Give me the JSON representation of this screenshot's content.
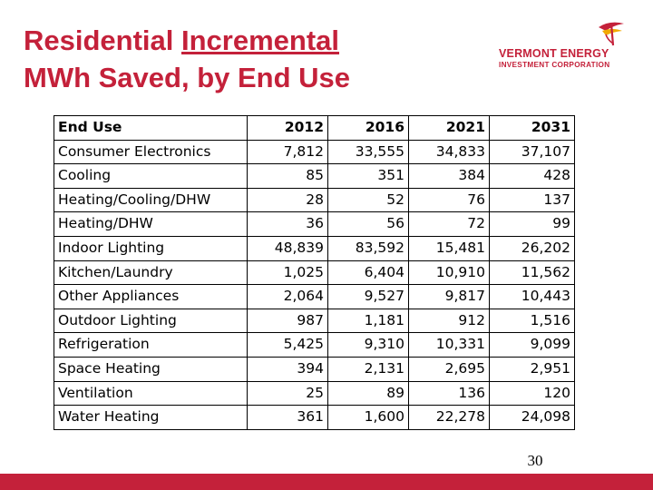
{
  "slide": {
    "title_part1": "Residential ",
    "title_underlined": "Incremental",
    "title_part2": "MWh Saved, by End Use",
    "page_number": "30",
    "accent_color": "#c4213a"
  },
  "logo": {
    "line1": "VERMONT ENERGY",
    "line2": "INVESTMENT CORPORATION",
    "icon": "sun-leaf-icon"
  },
  "table": {
    "headers": [
      "End Use",
      "2012",
      "2016",
      "2021",
      "2031"
    ],
    "rows": [
      [
        "Consumer Electronics",
        "7,812",
        "33,555",
        "34,833",
        "37,107"
      ],
      [
        "Cooling",
        "85",
        "351",
        "384",
        "428"
      ],
      [
        "Heating/Cooling/DHW",
        "28",
        "52",
        "76",
        "137"
      ],
      [
        "Heating/DHW",
        "36",
        "56",
        "72",
        "99"
      ],
      [
        "Indoor Lighting",
        "48,839",
        "83,592",
        "15,481",
        "26,202"
      ],
      [
        "Kitchen/Laundry",
        "1,025",
        "6,404",
        "10,910",
        "11,562"
      ],
      [
        "Other Appliances",
        "2,064",
        "9,527",
        "9,817",
        "10,443"
      ],
      [
        "Outdoor Lighting",
        "987",
        "1,181",
        "912",
        "1,516"
      ],
      [
        "Refrigeration",
        "5,425",
        "9,310",
        "10,331",
        "9,099"
      ],
      [
        "Space Heating",
        "394",
        "2,131",
        "2,695",
        "2,951"
      ],
      [
        "Ventilation",
        "25",
        "89",
        "136",
        "120"
      ],
      [
        "Water Heating",
        "361",
        "1,600",
        "22,278",
        "24,098"
      ]
    ]
  }
}
